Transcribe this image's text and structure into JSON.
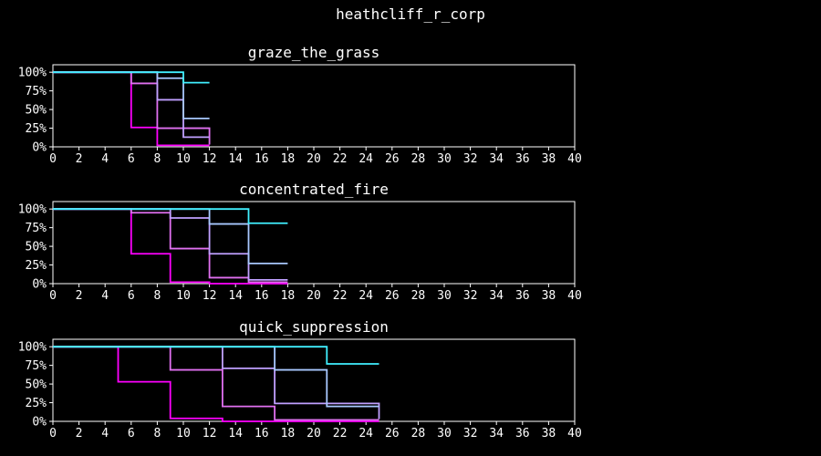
{
  "figure_title": "heathcliff_r_corp",
  "colors": {
    "background": "#000000",
    "axes": "#ffffff",
    "series": [
      "#ff00ff",
      "#e070f0",
      "#c0a0ff",
      "#a8c8ff",
      "#40f0ff"
    ]
  },
  "chart_data": [
    {
      "type": "line",
      "step": true,
      "title": "graze_the_grass",
      "xlim": [
        0,
        40
      ],
      "ylim": [
        0,
        110
      ],
      "xticks": [
        0,
        2,
        4,
        6,
        8,
        10,
        12,
        14,
        16,
        18,
        20,
        22,
        24,
        26,
        28,
        30,
        32,
        34,
        36,
        38,
        40
      ],
      "yticks": [
        0,
        25,
        50,
        75,
        100
      ],
      "ytick_labels": [
        "0%",
        "25%",
        "50%",
        "75%",
        "100%"
      ],
      "series": [
        {
          "x": [
            0,
            6,
            8,
            12
          ],
          "y": [
            100,
            26,
            2,
            2
          ]
        },
        {
          "x": [
            0,
            6,
            8,
            12
          ],
          "y": [
            100,
            85,
            25,
            3
          ]
        },
        {
          "x": [
            0,
            8,
            10,
            12
          ],
          "y": [
            100,
            63,
            13,
            13
          ]
        },
        {
          "x": [
            0,
            8,
            10,
            12
          ],
          "y": [
            100,
            92,
            38,
            38
          ]
        },
        {
          "x": [
            0,
            10,
            12
          ],
          "y": [
            100,
            86,
            86
          ]
        }
      ]
    },
    {
      "type": "line",
      "step": true,
      "title": "concentrated_fire",
      "xlim": [
        0,
        40
      ],
      "ylim": [
        0,
        110
      ],
      "xticks": [
        0,
        2,
        4,
        6,
        8,
        10,
        12,
        14,
        16,
        18,
        20,
        22,
        24,
        26,
        28,
        30,
        32,
        34,
        36,
        38,
        40
      ],
      "yticks": [
        0,
        25,
        50,
        75,
        100
      ],
      "ytick_labels": [
        "0%",
        "25%",
        "50%",
        "75%",
        "100%"
      ],
      "series": [
        {
          "x": [
            0,
            6,
            9,
            12,
            18
          ],
          "y": [
            100,
            40,
            2,
            0,
            0
          ]
        },
        {
          "x": [
            0,
            6,
            9,
            12,
            15,
            18
          ],
          "y": [
            100,
            95,
            47,
            8,
            2,
            2
          ]
        },
        {
          "x": [
            0,
            9,
            12,
            15,
            18
          ],
          "y": [
            100,
            88,
            40,
            5,
            5
          ]
        },
        {
          "x": [
            0,
            12,
            15,
            18
          ],
          "y": [
            100,
            80,
            27,
            27
          ]
        },
        {
          "x": [
            0,
            15,
            18
          ],
          "y": [
            100,
            81,
            81
          ]
        }
      ]
    },
    {
      "type": "line",
      "step": true,
      "title": "quick_suppression",
      "xlim": [
        0,
        40
      ],
      "ylim": [
        0,
        110
      ],
      "xticks": [
        0,
        2,
        4,
        6,
        8,
        10,
        12,
        14,
        16,
        18,
        20,
        22,
        24,
        26,
        28,
        30,
        32,
        34,
        36,
        38,
        40
      ],
      "yticks": [
        0,
        25,
        50,
        75,
        100
      ],
      "ytick_labels": [
        "0%",
        "25%",
        "50%",
        "75%",
        "100%"
      ],
      "series": [
        {
          "x": [
            0,
            5,
            9,
            13,
            25
          ],
          "y": [
            100,
            53,
            4,
            0,
            0
          ]
        },
        {
          "x": [
            0,
            9,
            13,
            17,
            25
          ],
          "y": [
            100,
            69,
            20,
            2,
            2
          ]
        },
        {
          "x": [
            0,
            13,
            17,
            25
          ],
          "y": [
            100,
            71,
            24,
            3
          ]
        },
        {
          "x": [
            0,
            17,
            21,
            25
          ],
          "y": [
            100,
            69,
            20,
            20
          ]
        },
        {
          "x": [
            0,
            21,
            25
          ],
          "y": [
            100,
            77,
            77
          ]
        }
      ]
    }
  ]
}
